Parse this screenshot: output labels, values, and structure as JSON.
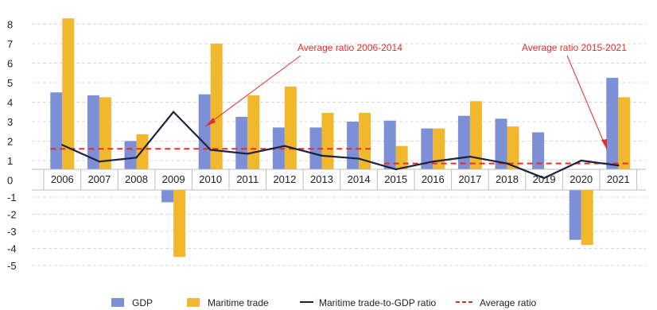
{
  "chart_data": {
    "type": "bar",
    "categories": [
      "2006",
      "2007",
      "2008",
      "2009",
      "2010",
      "2011",
      "2012",
      "2013",
      "2014",
      "2015",
      "2016",
      "2017",
      "2018",
      "2019",
      "2020",
      "2021"
    ],
    "series": [
      {
        "name": "GDP",
        "type": "bar",
        "color": "#7d8fd6",
        "values": [
          4.5,
          4.35,
          2.0,
          -1.3,
          4.4,
          3.25,
          2.7,
          2.7,
          3.0,
          3.05,
          2.65,
          3.3,
          3.15,
          2.45,
          -3.5,
          5.25
        ]
      },
      {
        "name": "Maritime trade",
        "type": "bar",
        "color": "#f2b82d",
        "values": [
          8.3,
          4.25,
          2.35,
          -4.5,
          7.0,
          4.35,
          4.8,
          3.45,
          3.45,
          1.75,
          2.65,
          4.05,
          2.75,
          0.15,
          -3.8,
          4.25
        ]
      },
      {
        "name": "Maritime trade-to-GDP ratio",
        "type": "line",
        "color": "#1c2340",
        "values": [
          1.8,
          0.95,
          1.15,
          3.5,
          1.55,
          1.35,
          1.75,
          1.25,
          1.1,
          0.55,
          0.95,
          1.2,
          0.85,
          0.1,
          1.0,
          0.75
        ]
      },
      {
        "name": "Average ratio",
        "type": "dashed-line",
        "color": "#e0302b",
        "segments": [
          {
            "from": "2006",
            "to": "2014",
            "value": 1.6
          },
          {
            "from": "2015",
            "to": "2021",
            "value": 0.85
          }
        ]
      }
    ],
    "ylim": [
      -5,
      8
    ],
    "yticks": [
      -5,
      -4,
      -3,
      -2,
      -1,
      0,
      1,
      2,
      3,
      4,
      5,
      6,
      7,
      8
    ],
    "annotations": [
      {
        "text": "Average ratio 2006-2014",
        "color": "#e0302b"
      },
      {
        "text": "Average ratio 2015-2021",
        "color": "#e0302b"
      }
    ],
    "grid": true,
    "legend": "bottom"
  }
}
